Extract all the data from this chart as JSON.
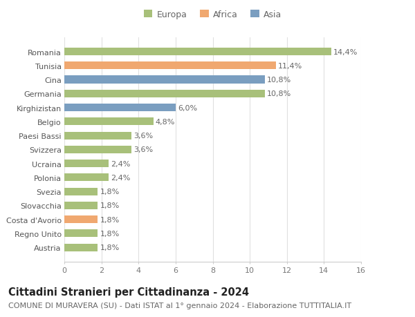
{
  "categories": [
    "Austria",
    "Regno Unito",
    "Costa d'Avorio",
    "Slovacchia",
    "Svezia",
    "Polonia",
    "Ucraina",
    "Svizzera",
    "Paesi Bassi",
    "Belgio",
    "Kirghizistan",
    "Germania",
    "Cina",
    "Tunisia",
    "Romania"
  ],
  "values": [
    1.8,
    1.8,
    1.8,
    1.8,
    1.8,
    2.4,
    2.4,
    3.6,
    3.6,
    4.8,
    6.0,
    10.8,
    10.8,
    11.4,
    14.4
  ],
  "labels": [
    "1,8%",
    "1,8%",
    "1,8%",
    "1,8%",
    "1,8%",
    "2,4%",
    "2,4%",
    "3,6%",
    "3,6%",
    "4,8%",
    "6,0%",
    "10,8%",
    "10,8%",
    "11,4%",
    "14,4%"
  ],
  "colors": [
    "#a8c07a",
    "#a8c07a",
    "#f0a870",
    "#a8c07a",
    "#a8c07a",
    "#a8c07a",
    "#a8c07a",
    "#a8c07a",
    "#a8c07a",
    "#a8c07a",
    "#7a9ec0",
    "#a8c07a",
    "#7a9ec0",
    "#f0a870",
    "#a8c07a"
  ],
  "legend_labels": [
    "Europa",
    "Africa",
    "Asia"
  ],
  "legend_colors": [
    "#a8c07a",
    "#f0a870",
    "#7a9ec0"
  ],
  "title_bold": "Cittadini Stranieri per Cittadinanza - 2024",
  "subtitle": "COMUNE DI MURAVERA (SU) - Dati ISTAT al 1° gennaio 2024 - Elaborazione TUTTITALIA.IT",
  "xlim": [
    0,
    16
  ],
  "xticks": [
    0,
    2,
    4,
    6,
    8,
    10,
    12,
    14,
    16
  ],
  "background_color": "#ffffff",
  "grid_color": "#e0e0e0",
  "bar_height": 0.55,
  "label_fontsize": 8.0,
  "tick_fontsize": 8.0,
  "title_fontsize": 10.5,
  "subtitle_fontsize": 8.0
}
